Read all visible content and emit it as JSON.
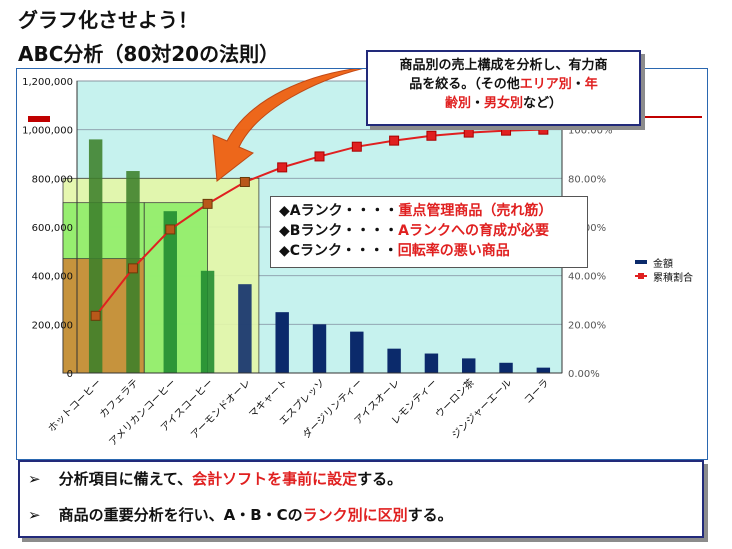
{
  "header": {
    "title_line1": "グラフ化させよう！",
    "title_line2": "ABC分析（80対20の法則）"
  },
  "callout": {
    "line1": "商品別の売上構成を分析し、有力商",
    "line2": "品を絞る。（その他",
    "line2_red1": "エリア別",
    "line2_sep": "・",
    "line2_red2": "年",
    "line3_red1": "齢別",
    "line3_sep": "・",
    "line3_red2": "男女別",
    "line3_end": "など）"
  },
  "ranks": [
    {
      "label": "◆Aランク・・・・",
      "desc": "重点管理商品（売れ筋）"
    },
    {
      "label": "◆Bランク・・・・",
      "desc": "Aランクへの育成が必要"
    },
    {
      "label": "◆Cランク・・・・",
      "desc": "回転率の悪い商品"
    }
  ],
  "bottom": {
    "bullet": "➢",
    "item1_pre": "分析項目に備えて、",
    "item1_red": "会計ソフトを事前に設定",
    "item1_post": "する。",
    "item2_pre": "商品の重要分析を行い、A・B・Cの",
    "item2_red": "ランク別に区別",
    "item2_post": "する。"
  },
  "colors": {
    "bar": "#0b2a6b",
    "line": "#e02020",
    "plot_bg": "#c6f2ee",
    "zone_a": "#cc8a38",
    "zone_b": "#8fee6a",
    "zone_c": "#e4f7a8",
    "arrow": "#f06010"
  },
  "chart_data": {
    "type": "bar",
    "categories": [
      "ホットコーヒー",
      "カフェラテ",
      "アメリカンコーヒー",
      "アイスコーヒー",
      "アーモンドオーレ",
      "マキャート",
      "エスプレッソ",
      "ダージリンティー",
      "アイスオーレ",
      "レモンティー",
      "ウーロン茶",
      "ジンジャーエール",
      "コーラ"
    ],
    "series": [
      {
        "name": "金額",
        "type": "bar",
        "axis": "left",
        "values": [
          960000,
          830000,
          665000,
          420000,
          365000,
          250000,
          200000,
          170000,
          100000,
          80000,
          60000,
          42000,
          22000
        ]
      },
      {
        "name": "累積割合",
        "type": "line",
        "axis": "right",
        "values": [
          23.5,
          43.0,
          59.0,
          69.5,
          78.5,
          84.5,
          89.0,
          93.0,
          95.5,
          97.5,
          98.8,
          99.6,
          100.0
        ]
      }
    ],
    "left_axis": {
      "min": 0,
      "max": 1200000,
      "ticks": [
        "0",
        "200,000",
        "400,000",
        "600,000",
        "800,000",
        "1,000,000",
        "1,200,000"
      ]
    },
    "right_axis": {
      "min": 0,
      "max": 120,
      "ticks": [
        "0.00%",
        "20.00%",
        "40.00%",
        "60.00%",
        "80.00%",
        "100.00%"
      ]
    },
    "legend": [
      "金額",
      "累積割合"
    ],
    "legend_position": "right"
  }
}
